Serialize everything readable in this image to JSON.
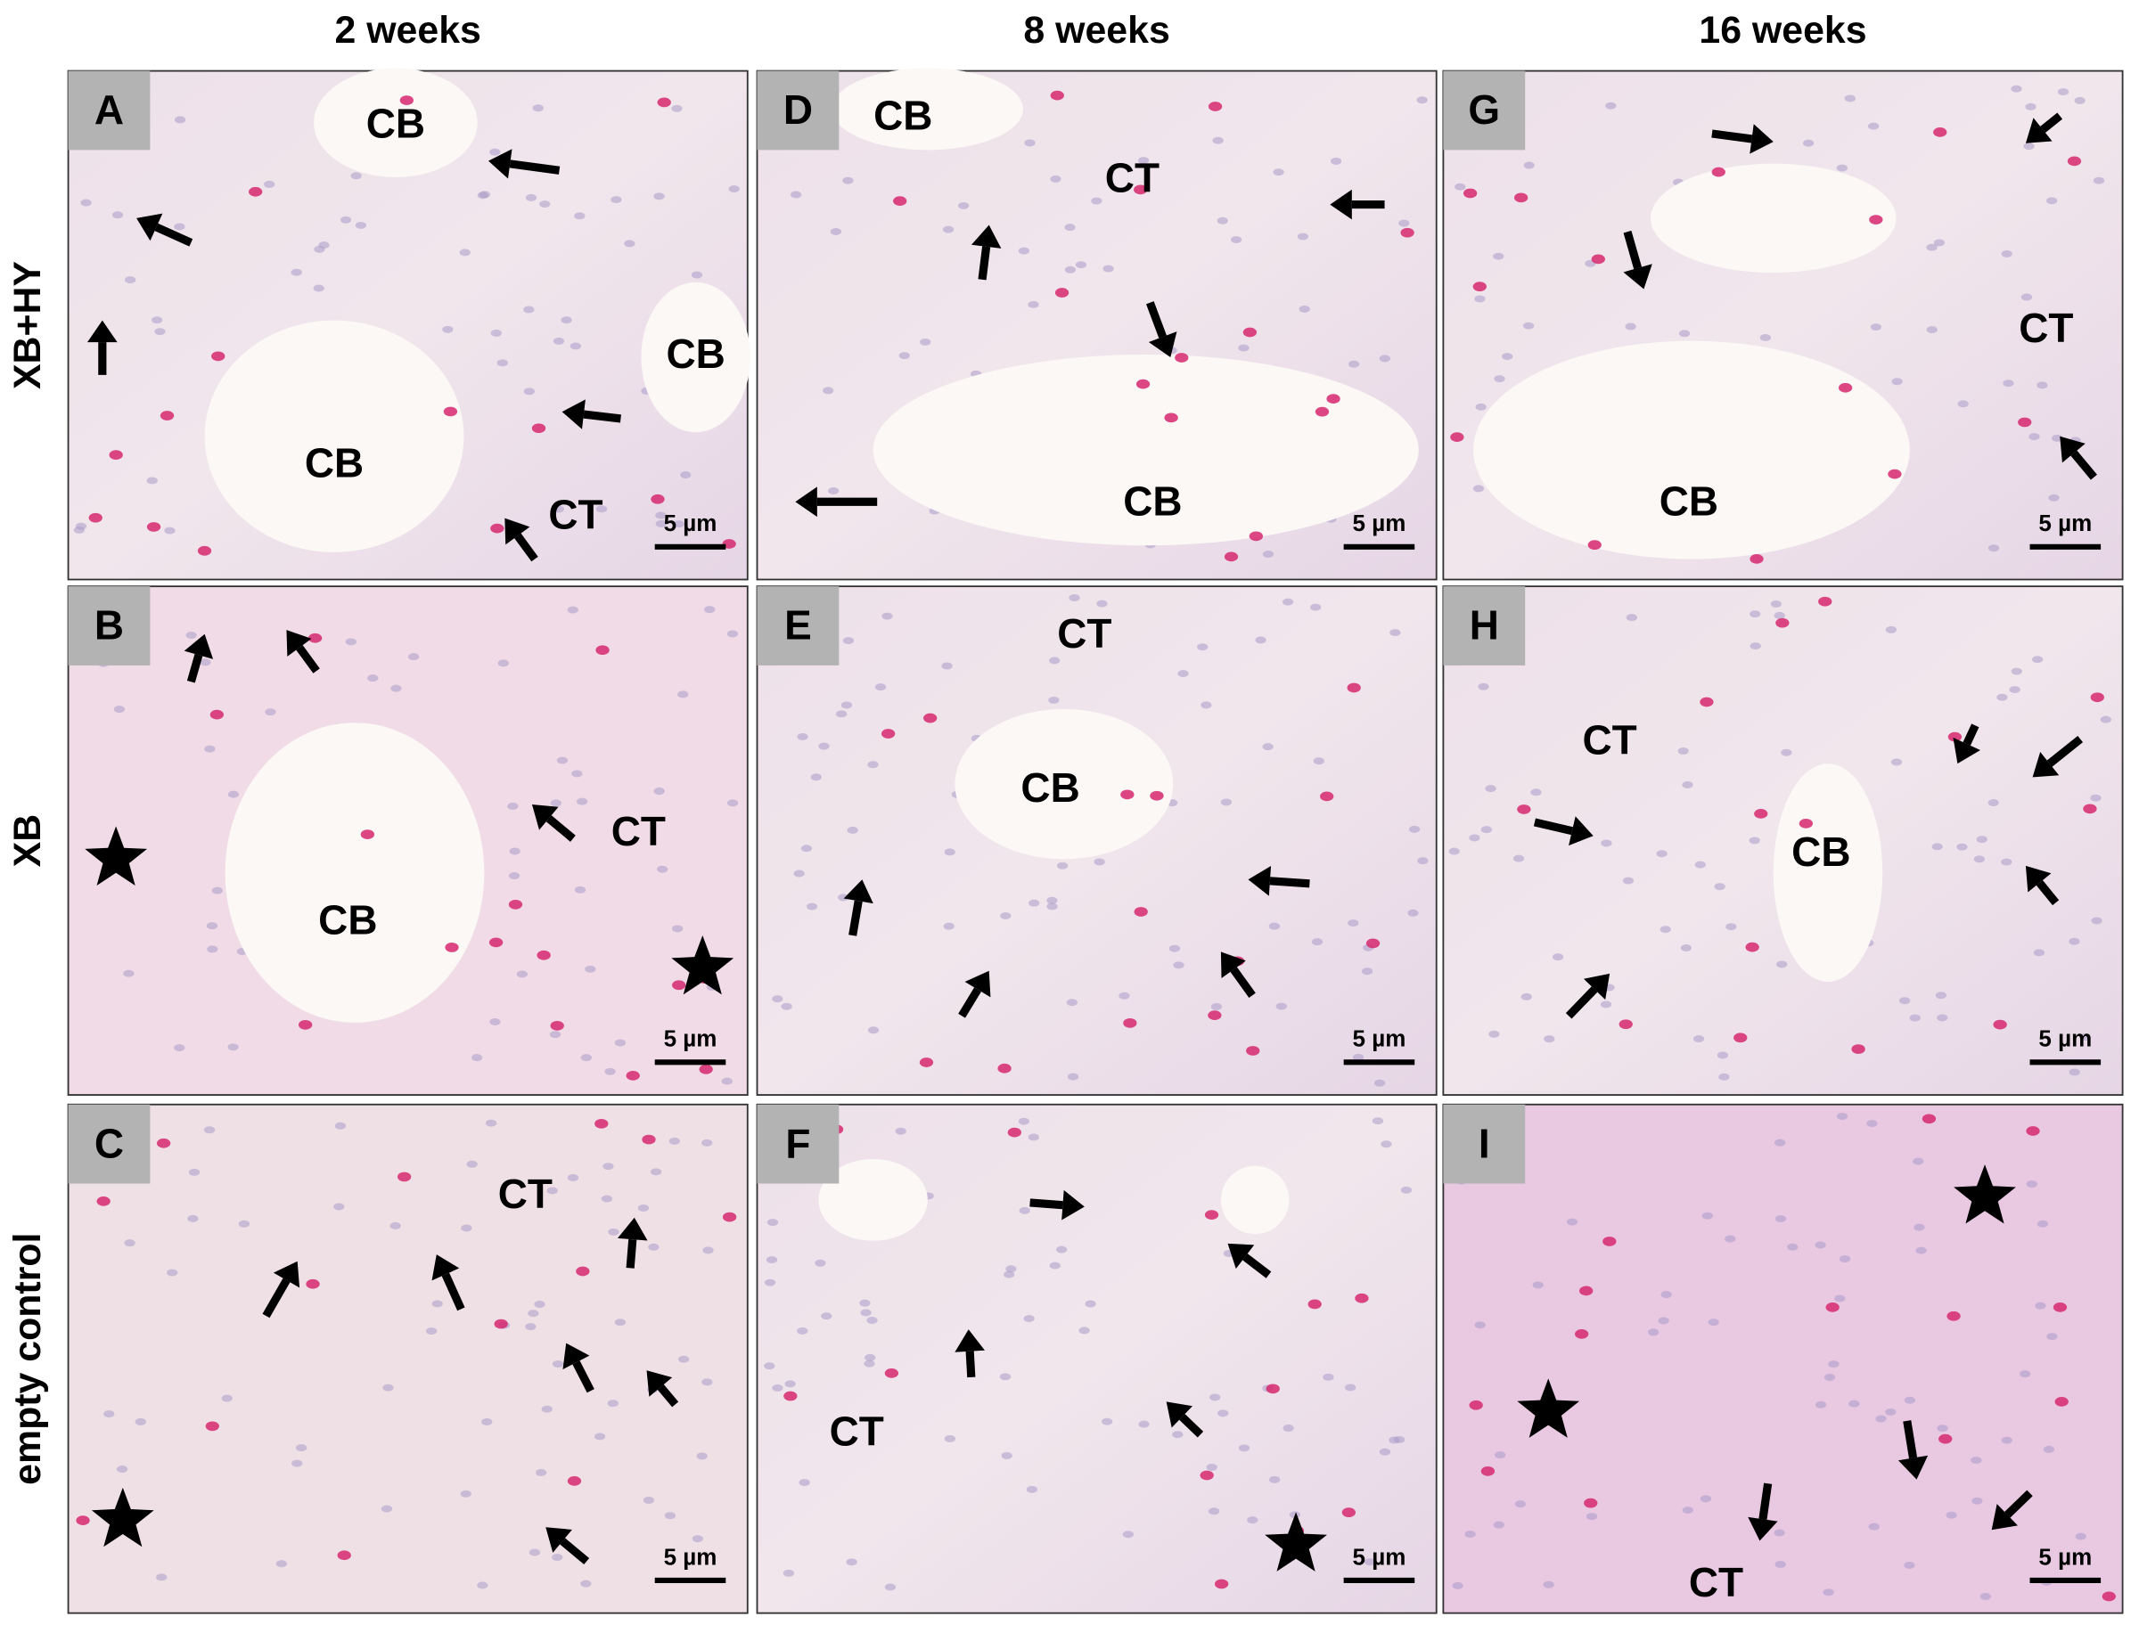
{
  "column_headers": [
    "2 weeks",
    "8 weeks",
    "16 weeks"
  ],
  "row_labels": [
    "XB+HY",
    "XB",
    "empty control"
  ],
  "panels": [
    {
      "letter": "A",
      "labels": [
        "CB",
        "CB",
        "CB",
        "CT"
      ],
      "scale_bar": "5 µm"
    },
    {
      "letter": "B",
      "labels": [
        "CT",
        "CB"
      ],
      "scale_bar": "5 µm"
    },
    {
      "letter": "C",
      "labels": [
        "CT"
      ],
      "scale_bar": "5 µm"
    },
    {
      "letter": "D",
      "labels": [
        "CB",
        "CT",
        "CB"
      ],
      "scale_bar": "5 µm"
    },
    {
      "letter": "E",
      "labels": [
        "CT",
        "CB"
      ],
      "scale_bar": "5 µm"
    },
    {
      "letter": "F",
      "labels": [
        "CT"
      ],
      "scale_bar": "5 µm"
    },
    {
      "letter": "G",
      "labels": [
        "CT",
        "CB"
      ],
      "scale_bar": "5 µm"
    },
    {
      "letter": "H",
      "labels": [
        "CT",
        "CB"
      ],
      "scale_bar": "5 µm"
    },
    {
      "letter": "I",
      "labels": [
        "CT"
      ],
      "scale_bar": "5 µm"
    }
  ]
}
